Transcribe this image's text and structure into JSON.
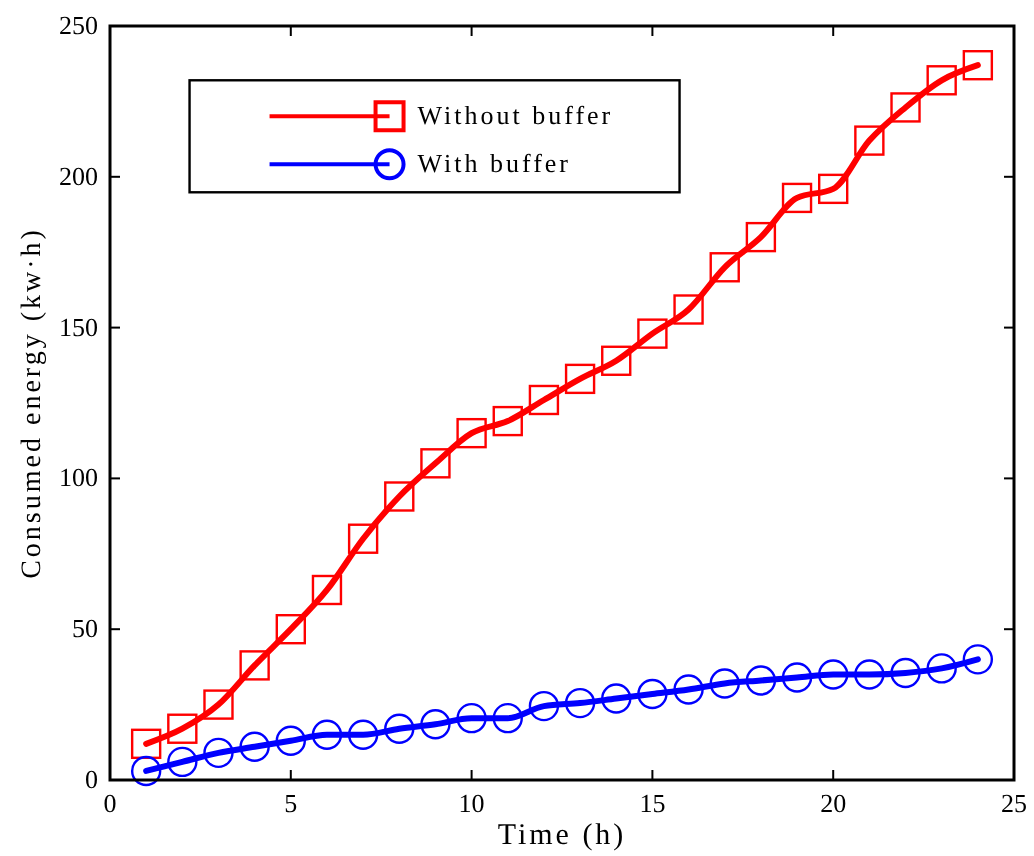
{
  "chart_data": {
    "type": "line",
    "xlabel": "Time (h)",
    "ylabel": "Consumed energy (kw·h)",
    "x": [
      1,
      2,
      3,
      4,
      5,
      6,
      7,
      8,
      9,
      10,
      11,
      12,
      13,
      14,
      15,
      16,
      17,
      18,
      19,
      20,
      21,
      22,
      23,
      24
    ],
    "series": [
      {
        "name": "Without buffer",
        "color": "#ff0000",
        "marker": "square",
        "values": [
          12,
          17,
          25,
          38,
          50,
          63,
          80,
          94,
          105,
          115,
          119,
          126,
          133,
          139,
          148,
          156,
          170,
          180,
          193,
          196,
          212,
          223,
          232,
          237
        ]
      },
      {
        "name": "With buffer",
        "color": "#0000ff",
        "marker": "circle",
        "values": [
          3,
          6,
          9,
          11,
          13,
          15,
          15,
          17,
          18.5,
          20.5,
          20.5,
          24.5,
          25.5,
          27,
          28.5,
          30,
          32,
          33,
          34,
          35,
          35,
          35.5,
          37,
          40
        ]
      }
    ],
    "xlim": [
      0,
      25
    ],
    "xticks": [
      0,
      5,
      10,
      15,
      20,
      25
    ],
    "ylim": [
      0,
      250
    ],
    "yticks": [
      0,
      50,
      100,
      150,
      200,
      250
    ],
    "grid": false,
    "legend": "top left",
    "line_style": "solid"
  }
}
